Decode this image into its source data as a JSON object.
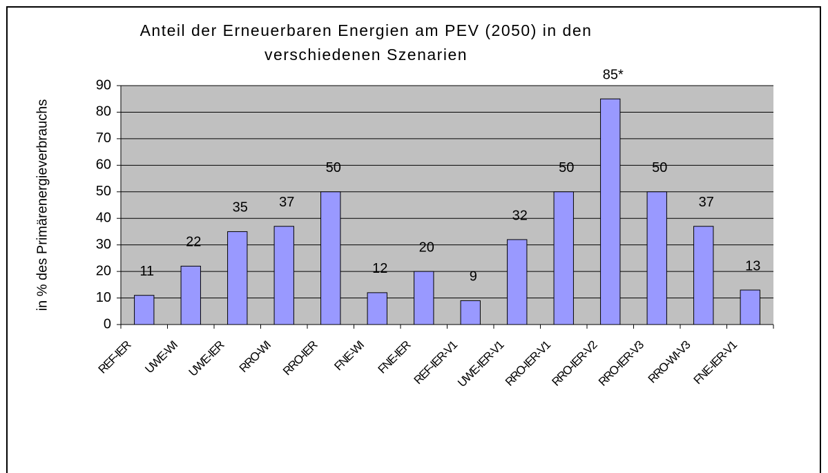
{
  "chart_data": {
    "type": "bar",
    "title_lines": [
      "Anteil der Erneuerbaren Energien am PEV (2050) in den",
      "verschiedenen Szenarien"
    ],
    "y_label": "in % des Primärenergieverbrauchs",
    "categories": [
      "REF-IER",
      "UWE-WI",
      "UWE-IER",
      "RRO-WI",
      "RRO-IER",
      "FNE-WI",
      "FNE-IER",
      "REF-IER-V1",
      "UWE-IER-V1",
      "RRO-IER-V1",
      "RRO-IER-V2",
      "RRO-IER-V3",
      "RRO-WI-V3",
      "FNE-IER-V1"
    ],
    "values": [
      11,
      22,
      35,
      37,
      50,
      12,
      20,
      9,
      32,
      50,
      85,
      50,
      37,
      13
    ],
    "value_labels": [
      "11",
      "22",
      "35",
      "37",
      "50",
      "12",
      "20",
      "9",
      "32",
      "50",
      "85*",
      "50",
      "37",
      "13"
    ],
    "color": "#9999ff",
    "ylim": [
      0,
      90
    ],
    "yticks": [
      0,
      10,
      20,
      30,
      40,
      50,
      60,
      70,
      80,
      90
    ],
    "grid": true
  }
}
